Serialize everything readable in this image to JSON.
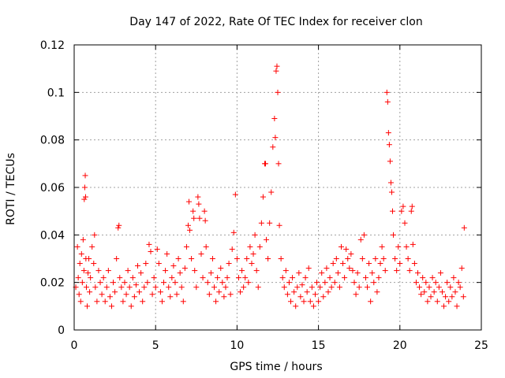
{
  "chart_data": {
    "type": "scatter",
    "title": "Day 147 of 2022, Rate Of TEC Index for receiver clon",
    "xlabel": "GPS time / hours",
    "ylabel": "ROTI / TECUs",
    "xlim": [
      0,
      25
    ],
    "ylim": [
      0,
      0.12
    ],
    "xticks": [
      0,
      5,
      10,
      15,
      20,
      25
    ],
    "xtick_labels": [
      "0",
      "5",
      "10",
      "15",
      "20",
      "25"
    ],
    "yticks": [
      0,
      0.02,
      0.04,
      0.06,
      0.08,
      0.1,
      0.12
    ],
    "ytick_labels": [
      "0",
      "0.02",
      "0.04",
      "0.06",
      "0.08",
      "0.1",
      "0.12"
    ],
    "grid": true,
    "marker": "plus",
    "series_color": "#ff0000",
    "series": [
      {
        "points": [
          [
            0.1,
            0.018
          ],
          [
            0.2,
            0.035
          ],
          [
            0.25,
            0.022
          ],
          [
            0.3,
            0.015
          ],
          [
            0.35,
            0.028
          ],
          [
            0.4,
            0.012
          ],
          [
            0.45,
            0.032
          ],
          [
            0.5,
            0.02
          ],
          [
            0.55,
            0.038
          ],
          [
            0.6,
            0.025
          ],
          [
            0.62,
            0.055
          ],
          [
            0.65,
            0.06
          ],
          [
            0.68,
            0.065
          ],
          [
            0.7,
            0.056
          ],
          [
            0.72,
            0.03
          ],
          [
            0.75,
            0.018
          ],
          [
            0.8,
            0.01
          ],
          [
            0.85,
            0.024
          ],
          [
            0.9,
            0.03
          ],
          [
            0.95,
            0.016
          ],
          [
            1.0,
            0.022
          ],
          [
            1.1,
            0.035
          ],
          [
            1.2,
            0.028
          ],
          [
            1.25,
            0.04
          ],
          [
            1.3,
            0.018
          ],
          [
            1.4,
            0.012
          ],
          [
            1.5,
            0.025
          ],
          [
            1.6,
            0.02
          ],
          [
            1.7,
            0.015
          ],
          [
            1.8,
            0.022
          ],
          [
            1.9,
            0.012
          ],
          [
            2.0,
            0.018
          ],
          [
            2.1,
            0.025
          ],
          [
            2.2,
            0.014
          ],
          [
            2.3,
            0.01
          ],
          [
            2.4,
            0.02
          ],
          [
            2.5,
            0.016
          ],
          [
            2.6,
            0.03
          ],
          [
            2.7,
            0.043
          ],
          [
            2.75,
            0.044
          ],
          [
            2.8,
            0.022
          ],
          [
            2.9,
            0.018
          ],
          [
            3.0,
            0.012
          ],
          [
            3.1,
            0.02
          ],
          [
            3.2,
            0.015
          ],
          [
            3.3,
            0.025
          ],
          [
            3.4,
            0.018
          ],
          [
            3.5,
            0.01
          ],
          [
            3.6,
            0.022
          ],
          [
            3.7,
            0.014
          ],
          [
            3.8,
            0.019
          ],
          [
            3.9,
            0.027
          ],
          [
            4.0,
            0.016
          ],
          [
            4.1,
            0.024
          ],
          [
            4.2,
            0.012
          ],
          [
            4.3,
            0.018
          ],
          [
            4.4,
            0.028
          ],
          [
            4.5,
            0.02
          ],
          [
            4.6,
            0.036
          ],
          [
            4.7,
            0.033
          ],
          [
            4.8,
            0.015
          ],
          [
            4.9,
            0.022
          ],
          [
            5.0,
            0.018
          ],
          [
            5.1,
            0.034
          ],
          [
            5.2,
            0.028
          ],
          [
            5.3,
            0.016
          ],
          [
            5.4,
            0.012
          ],
          [
            5.5,
            0.02
          ],
          [
            5.6,
            0.025
          ],
          [
            5.7,
            0.032
          ],
          [
            5.8,
            0.018
          ],
          [
            5.9,
            0.014
          ],
          [
            6.0,
            0.022
          ],
          [
            6.1,
            0.027
          ],
          [
            6.2,
            0.02
          ],
          [
            6.3,
            0.015
          ],
          [
            6.4,
            0.03
          ],
          [
            6.5,
            0.024
          ],
          [
            6.6,
            0.018
          ],
          [
            6.7,
            0.012
          ],
          [
            6.8,
            0.026
          ],
          [
            6.9,
            0.035
          ],
          [
            7.0,
            0.044
          ],
          [
            7.05,
            0.054
          ],
          [
            7.1,
            0.042
          ],
          [
            7.2,
            0.03
          ],
          [
            7.3,
            0.05
          ],
          [
            7.35,
            0.047
          ],
          [
            7.4,
            0.025
          ],
          [
            7.5,
            0.018
          ],
          [
            7.6,
            0.056
          ],
          [
            7.65,
            0.053
          ],
          [
            7.7,
            0.047
          ],
          [
            7.8,
            0.032
          ],
          [
            7.9,
            0.022
          ],
          [
            8.0,
            0.05
          ],
          [
            8.05,
            0.046
          ],
          [
            8.1,
            0.035
          ],
          [
            8.2,
            0.02
          ],
          [
            8.3,
            0.015
          ],
          [
            8.4,
            0.024
          ],
          [
            8.5,
            0.03
          ],
          [
            8.6,
            0.018
          ],
          [
            8.7,
            0.012
          ],
          [
            8.8,
            0.022
          ],
          [
            8.9,
            0.016
          ],
          [
            9.0,
            0.026
          ],
          [
            9.1,
            0.02
          ],
          [
            9.2,
            0.014
          ],
          [
            9.3,
            0.018
          ],
          [
            9.4,
            0.022
          ],
          [
            9.5,
            0.028
          ],
          [
            9.6,
            0.015
          ],
          [
            9.7,
            0.034
          ],
          [
            9.8,
            0.041
          ],
          [
            9.9,
            0.057
          ],
          [
            10.0,
            0.03
          ],
          [
            10.1,
            0.022
          ],
          [
            10.2,
            0.016
          ],
          [
            10.3,
            0.025
          ],
          [
            10.4,
            0.018
          ],
          [
            10.5,
            0.022
          ],
          [
            10.6,
            0.03
          ],
          [
            10.7,
            0.02
          ],
          [
            10.8,
            0.035
          ],
          [
            10.9,
            0.028
          ],
          [
            11.0,
            0.032
          ],
          [
            11.1,
            0.04
          ],
          [
            11.2,
            0.025
          ],
          [
            11.3,
            0.018
          ],
          [
            11.4,
            0.035
          ],
          [
            11.5,
            0.045
          ],
          [
            11.6,
            0.056
          ],
          [
            11.7,
            0.07
          ],
          [
            11.75,
            0.07
          ],
          [
            11.8,
            0.038
          ],
          [
            11.9,
            0.03
          ],
          [
            12.0,
            0.045
          ],
          [
            12.1,
            0.058
          ],
          [
            12.2,
            0.077
          ],
          [
            12.3,
            0.089
          ],
          [
            12.35,
            0.081
          ],
          [
            12.4,
            0.109
          ],
          [
            12.45,
            0.111
          ],
          [
            12.5,
            0.1
          ],
          [
            12.55,
            0.07
          ],
          [
            12.6,
            0.044
          ],
          [
            12.7,
            0.03
          ],
          [
            12.8,
            0.022
          ],
          [
            12.9,
            0.018
          ],
          [
            13.0,
            0.025
          ],
          [
            13.1,
            0.015
          ],
          [
            13.2,
            0.02
          ],
          [
            13.3,
            0.012
          ],
          [
            13.4,
            0.022
          ],
          [
            13.5,
            0.016
          ],
          [
            13.6,
            0.01
          ],
          [
            13.7,
            0.018
          ],
          [
            13.8,
            0.024
          ],
          [
            13.9,
            0.014
          ],
          [
            14.0,
            0.019
          ],
          [
            14.1,
            0.012
          ],
          [
            14.2,
            0.022
          ],
          [
            14.3,
            0.016
          ],
          [
            14.4,
            0.026
          ],
          [
            14.5,
            0.012
          ],
          [
            14.6,
            0.018
          ],
          [
            14.7,
            0.01
          ],
          [
            14.8,
            0.015
          ],
          [
            14.9,
            0.02
          ],
          [
            15.0,
            0.012
          ],
          [
            15.1,
            0.018
          ],
          [
            15.2,
            0.024
          ],
          [
            15.3,
            0.014
          ],
          [
            15.4,
            0.02
          ],
          [
            15.5,
            0.026
          ],
          [
            15.6,
            0.016
          ],
          [
            15.7,
            0.022
          ],
          [
            15.8,
            0.018
          ],
          [
            15.9,
            0.028
          ],
          [
            16.0,
            0.02
          ],
          [
            16.1,
            0.03
          ],
          [
            16.2,
            0.024
          ],
          [
            16.3,
            0.018
          ],
          [
            16.4,
            0.035
          ],
          [
            16.5,
            0.028
          ],
          [
            16.6,
            0.022
          ],
          [
            16.7,
            0.034
          ],
          [
            16.8,
            0.03
          ],
          [
            16.9,
            0.026
          ],
          [
            17.0,
            0.032
          ],
          [
            17.1,
            0.025
          ],
          [
            17.2,
            0.02
          ],
          [
            17.3,
            0.015
          ],
          [
            17.4,
            0.024
          ],
          [
            17.5,
            0.018
          ],
          [
            17.6,
            0.038
          ],
          [
            17.7,
            0.03
          ],
          [
            17.8,
            0.04
          ],
          [
            17.9,
            0.022
          ],
          [
            18.0,
            0.018
          ],
          [
            18.1,
            0.028
          ],
          [
            18.2,
            0.012
          ],
          [
            18.3,
            0.024
          ],
          [
            18.4,
            0.02
          ],
          [
            18.5,
            0.03
          ],
          [
            18.6,
            0.016
          ],
          [
            18.7,
            0.022
          ],
          [
            18.8,
            0.028
          ],
          [
            18.9,
            0.035
          ],
          [
            19.0,
            0.03
          ],
          [
            19.1,
            0.025
          ],
          [
            19.2,
            0.1
          ],
          [
            19.25,
            0.096
          ],
          [
            19.3,
            0.083
          ],
          [
            19.35,
            0.078
          ],
          [
            19.4,
            0.071
          ],
          [
            19.45,
            0.062
          ],
          [
            19.5,
            0.058
          ],
          [
            19.55,
            0.05
          ],
          [
            19.6,
            0.04
          ],
          [
            19.7,
            0.03
          ],
          [
            19.8,
            0.025
          ],
          [
            19.9,
            0.035
          ],
          [
            20.0,
            0.028
          ],
          [
            20.1,
            0.05
          ],
          [
            20.2,
            0.052
          ],
          [
            20.3,
            0.045
          ],
          [
            20.4,
            0.035
          ],
          [
            20.5,
            0.03
          ],
          [
            20.6,
            0.025
          ],
          [
            20.7,
            0.05
          ],
          [
            20.75,
            0.052
          ],
          [
            20.8,
            0.036
          ],
          [
            20.9,
            0.028
          ],
          [
            21.0,
            0.02
          ],
          [
            21.1,
            0.024
          ],
          [
            21.2,
            0.018
          ],
          [
            21.3,
            0.015
          ],
          [
            21.4,
            0.022
          ],
          [
            21.5,
            0.016
          ],
          [
            21.6,
            0.02
          ],
          [
            21.7,
            0.012
          ],
          [
            21.8,
            0.018
          ],
          [
            21.9,
            0.014
          ],
          [
            22.0,
            0.022
          ],
          [
            22.1,
            0.016
          ],
          [
            22.2,
            0.02
          ],
          [
            22.3,
            0.012
          ],
          [
            22.4,
            0.018
          ],
          [
            22.5,
            0.024
          ],
          [
            22.6,
            0.016
          ],
          [
            22.7,
            0.01
          ],
          [
            22.8,
            0.014
          ],
          [
            22.9,
            0.02
          ],
          [
            23.0,
            0.012
          ],
          [
            23.1,
            0.018
          ],
          [
            23.2,
            0.014
          ],
          [
            23.3,
            0.022
          ],
          [
            23.4,
            0.016
          ],
          [
            23.5,
            0.01
          ],
          [
            23.6,
            0.02
          ],
          [
            23.7,
            0.018
          ],
          [
            23.8,
            0.026
          ],
          [
            23.9,
            0.014
          ],
          [
            23.95,
            0.043
          ]
        ]
      }
    ]
  }
}
